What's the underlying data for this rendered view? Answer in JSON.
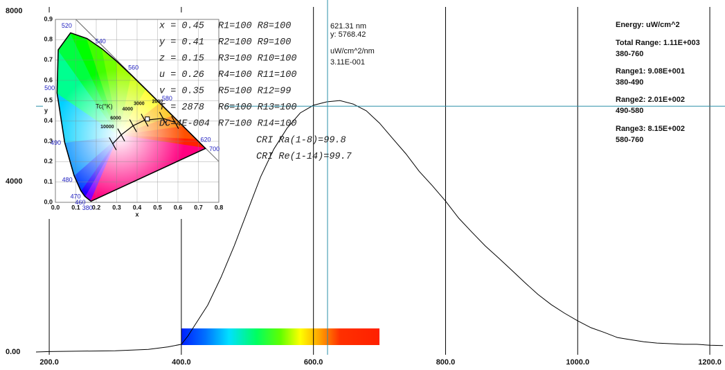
{
  "chart_data": [
    {
      "type": "line",
      "x": [
        180,
        200,
        250,
        300,
        350,
        380,
        400,
        410,
        420,
        440,
        460,
        480,
        500,
        520,
        540,
        560,
        580,
        600,
        620,
        640,
        660,
        680,
        700,
        720,
        740,
        760,
        780,
        800,
        820,
        840,
        860,
        880,
        900,
        920,
        940,
        960,
        980,
        1000,
        1020,
        1040,
        1060,
        1080,
        1100,
        1120,
        1140,
        1160,
        1180,
        1200,
        1220
      ],
      "values": [
        0,
        10,
        20,
        30,
        60,
        120,
        180,
        375,
        620,
        1100,
        1750,
        2490,
        3300,
        4110,
        4760,
        5250,
        5610,
        5790,
        5870,
        5900,
        5820,
        5660,
        5370,
        5010,
        4650,
        4240,
        3900,
        3540,
        3140,
        2810,
        2490,
        2210,
        1920,
        1630,
        1350,
        1110,
        910,
        730,
        570,
        460,
        340,
        290,
        240,
        210,
        195,
        180,
        180,
        160,
        150
      ],
      "color": "#000000",
      "xlim": [
        180,
        1223
      ],
      "ylim": [
        0,
        8000
      ],
      "xticks": [
        {
          "value": 200,
          "label": "200.0"
        },
        {
          "value": 400,
          "label": "400.0"
        },
        {
          "value": 600,
          "label": "600.0"
        },
        {
          "value": 800,
          "label": "800.0"
        },
        {
          "value": 1000,
          "label": "1000.0"
        },
        {
          "value": 1200,
          "label": "1200.0"
        }
      ],
      "yticks": [
        {
          "value": 0,
          "label": "0.00"
        },
        4000,
        8000
      ],
      "grid": "x",
      "cursor": {
        "x": 621.31,
        "y": 5768.42,
        "color": "#2a8fa8",
        "labels": [
          "621.31 nm",
          "y: 5768.42",
          "uW/cm^2/nm",
          "3.11E-001"
        ]
      },
      "readout": [
        "Energy: uW/cm^2",
        "Total Range: 1.11E+003",
        "380-760",
        "Range1: 9.08E+001",
        "380-490",
        "Range2: 2.01E+002",
        "490-580",
        "Range3: 8.15E+002",
        "580-760"
      ]
    },
    {
      "type": "chromaticity",
      "x_label": "x",
      "y_label": "y",
      "xlim": [
        0,
        0.8
      ],
      "ylim": [
        0,
        0.9
      ],
      "xticks": [
        {
          "value": 0,
          "label": "0.0"
        },
        0.1,
        0.2,
        0.3,
        0.4,
        0.5,
        0.6,
        0.7,
        0.8
      ],
      "yticks": [
        {
          "value": 0,
          "label": "0.0"
        },
        0.1,
        0.2,
        0.3,
        0.4,
        0.5,
        0.6,
        0.7,
        0.8,
        0.9
      ],
      "locus": {
        "labels": [
          "380",
          "460",
          "470",
          "480",
          "490",
          "500",
          null,
          "520",
          null,
          "540",
          null,
          "560",
          null,
          "580",
          null,
          null,
          "620",
          "700"
        ],
        "x": [
          0.1741,
          0.144,
          0.1241,
          0.0913,
          0.0454,
          0.0082,
          0.0139,
          0.0743,
          0.1547,
          0.2296,
          0.3016,
          0.3731,
          0.4441,
          0.5125,
          0.5752,
          0.627,
          0.6915,
          0.7347
        ],
        "y": [
          0.005,
          0.0297,
          0.0578,
          0.1327,
          0.295,
          0.5384,
          0.7502,
          0.8338,
          0.8059,
          0.7543,
          0.6923,
          0.6245,
          0.5547,
          0.4866,
          0.4242,
          0.3725,
          0.3083,
          0.2653
        ],
        "colors": [
          "#8000ff",
          "#2000ff",
          "#0040ff",
          "#0090ff",
          "#00d0ff",
          "#00ff90",
          "#00ff40",
          "#00ff00",
          "#40ff00",
          "#70ff00",
          "#a0ff00",
          "#d0ff00",
          "#ffff00",
          "#ffc000",
          "#ff8000",
          "#ff5000",
          "#ff2000",
          "#ff0000"
        ],
        "purple_color": "#ff0080",
        "label_color": "#2020c0"
      },
      "planck": {
        "title": "Tc(°K)",
        "labels": [
          "10000",
          "6000",
          "4000",
          "3000",
          "2000",
          null
        ],
        "x": [
          0.2807,
          0.3221,
          0.3805,
          0.4369,
          0.5267,
          0.5857
        ],
        "y": [
          0.2884,
          0.3318,
          0.3768,
          0.4041,
          0.4133,
          0.3931
        ]
      },
      "point": {
        "x": [
          0.45
        ],
        "y": [
          0.41
        ]
      },
      "readout": {
        "left": [
          "x = 0.45",
          "y = 0.41",
          "z = 0.15",
          "u = 0.26",
          "v = 0.35",
          "T = 2878",
          "DC=4E-004"
        ],
        "right": [
          "R1=100 R8=100",
          "R2=100 R9=100",
          "R3=100 R10=100",
          "R4=100 R11=100",
          "R5=100 R12=99",
          "R6=100 R13=100",
          "R7=100 R14=100"
        ],
        "cri": [
          "CRI Ra(1-8)=99.8",
          "CRI Re(1-14)=99.7"
        ]
      }
    }
  ]
}
